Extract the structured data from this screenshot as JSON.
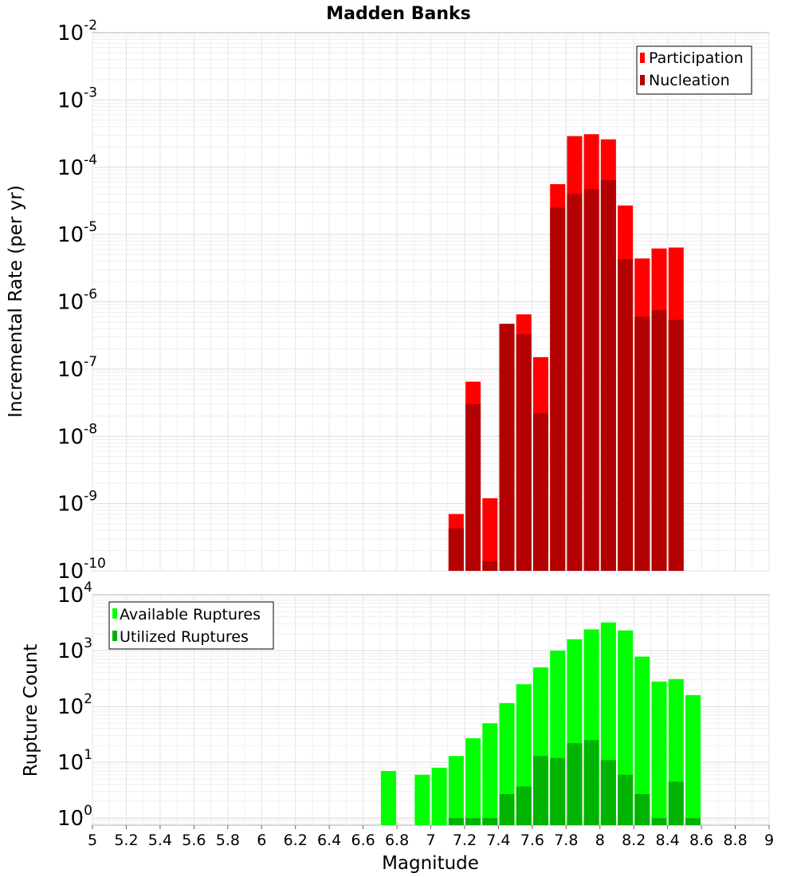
{
  "chart_data": [
    {
      "type": "bar",
      "title": "Madden Banks",
      "xlabel": "",
      "ylabel": "Incremental Rate (per yr)",
      "yscale": "log",
      "ylim": [
        1e-10,
        0.01
      ],
      "xlim": [
        5,
        9
      ],
      "y_tick_base": "10",
      "y_tick_exponents": [
        "-10",
        "-9",
        "-8",
        "-7",
        "-6",
        "-5",
        "-4",
        "-3",
        "-2"
      ],
      "grid": true,
      "legend_position": "top-right",
      "series": [
        {
          "name": "Participation",
          "color": "#ff0000",
          "x": [
            7.15,
            7.25,
            7.35,
            7.45,
            7.55,
            7.65,
            7.75,
            7.85,
            7.95,
            8.05,
            8.15,
            8.25,
            8.35,
            8.45
          ],
          "values": [
            7e-10,
            6.5e-08,
            1.2e-09,
            4.7e-07,
            6.5e-07,
            1.5e-07,
            5.6e-05,
            0.00029,
            0.00031,
            0.00026,
            2.7e-05,
            4.4e-06,
            6.2e-06,
            6.4e-06
          ]
        },
        {
          "name": "Nucleation",
          "color": "#b30000",
          "x": [
            7.15,
            7.25,
            7.35,
            7.45,
            7.55,
            7.65,
            7.75,
            7.85,
            7.95,
            8.05,
            8.15,
            8.25,
            8.35,
            8.45
          ],
          "values": [
            4.3e-10,
            3e-08,
            1.4e-10,
            4.7e-07,
            3.3e-07,
            2.2e-08,
            2.5e-05,
            4e-05,
            4.7e-05,
            6.4e-05,
            4.3e-06,
            6e-07,
            7.5e-07,
            5.4e-07
          ]
        }
      ]
    },
    {
      "type": "bar",
      "title": "",
      "xlabel": "Magnitude",
      "ylabel": "Rupture Count",
      "yscale": "log",
      "ylim": [
        0.75,
        10000
      ],
      "xlim": [
        5,
        9
      ],
      "y_tick_base": "10",
      "y_tick_exponents": [
        "0",
        "1",
        "2",
        "3",
        "4"
      ],
      "x_ticks": [
        "5",
        "5.2",
        "5.4",
        "5.6",
        "5.8",
        "6",
        "6.2",
        "6.4",
        "6.6",
        "6.8",
        "7",
        "7.2",
        "7.4",
        "7.6",
        "7.8",
        "8",
        "8.2",
        "8.4",
        "8.6",
        "8.8",
        "9"
      ],
      "grid": true,
      "legend_position": "top-left",
      "series": [
        {
          "name": "Available Ruptures",
          "color": "#00ff00",
          "x": [
            6.75,
            6.95,
            7.05,
            7.15,
            7.25,
            7.35,
            7.45,
            7.55,
            7.65,
            7.75,
            7.85,
            7.95,
            8.05,
            8.15,
            8.25,
            8.35,
            8.45,
            8.55
          ],
          "values": [
            7,
            6,
            8,
            13,
            27,
            50,
            115,
            250,
            500,
            1000,
            1600,
            2400,
            3200,
            2300,
            780,
            280,
            310,
            160
          ]
        },
        {
          "name": "Utilized Ruptures",
          "color": "#00b300",
          "x": [
            7.15,
            7.25,
            7.35,
            7.45,
            7.55,
            7.65,
            7.75,
            7.85,
            7.95,
            8.05,
            8.15,
            8.25,
            8.35,
            8.45,
            8.55
          ],
          "values": [
            1,
            1,
            1,
            2.7,
            3.7,
            13,
            12,
            22,
            25,
            11,
            6,
            2.7,
            1,
            4.5,
            1
          ]
        }
      ]
    }
  ]
}
